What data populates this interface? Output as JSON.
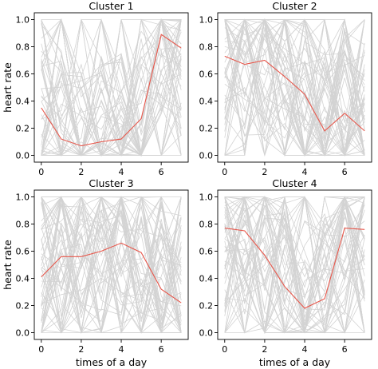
{
  "colors": {
    "mean_line": "#e8574b",
    "background_lines": "#d3d3d3"
  },
  "chart_data": [
    {
      "type": "line",
      "title": "Cluster 1",
      "xlabel": "",
      "ylabel": "heart rate",
      "xlim": [
        -0.35,
        7.35
      ],
      "ylim": [
        -0.05,
        1.05
      ],
      "xticks": [
        0,
        2,
        4,
        6
      ],
      "yticks": [
        0.0,
        0.2,
        0.4,
        0.6,
        0.8,
        1.0
      ],
      "ytick_labels": [
        "0.0",
        "0.2",
        "0.4",
        "0.6",
        "0.8",
        "1.0"
      ],
      "x": [
        0,
        1,
        2,
        3,
        4,
        5,
        6,
        7
      ],
      "mean": [
        0.35,
        0.12,
        0.07,
        0.1,
        0.12,
        0.27,
        0.89,
        0.79
      ],
      "background_series_count": 60,
      "background_pattern": "low-middle"
    },
    {
      "type": "line",
      "title": "Cluster 2",
      "xlabel": "",
      "ylabel": "",
      "xlim": [
        -0.35,
        7.35
      ],
      "ylim": [
        -0.05,
        1.05
      ],
      "xticks": [
        0,
        2,
        4,
        6
      ],
      "yticks": [
        0.0,
        0.2,
        0.4,
        0.6,
        0.8,
        1.0
      ],
      "ytick_labels": [
        "0.0",
        "0.2",
        "0.4",
        "0.6",
        "0.8",
        "1.0"
      ],
      "x": [
        0,
        1,
        2,
        3,
        4,
        5,
        6,
        7
      ],
      "mean": [
        0.73,
        0.67,
        0.7,
        0.58,
        0.45,
        0.18,
        0.31,
        0.18
      ],
      "background_series_count": 60,
      "background_pattern": "descending"
    },
    {
      "type": "line",
      "title": "Cluster 3",
      "xlabel": "times of a day",
      "ylabel": "heart rate",
      "xlim": [
        -0.35,
        7.35
      ],
      "ylim": [
        -0.05,
        1.05
      ],
      "xticks": [
        0,
        2,
        4,
        6
      ],
      "yticks": [
        0.0,
        0.2,
        0.4,
        0.6,
        0.8,
        1.0
      ],
      "ytick_labels": [
        "0.0",
        "0.2",
        "0.4",
        "0.6",
        "0.8",
        "1.0"
      ],
      "x": [
        0,
        1,
        2,
        3,
        4,
        5,
        6,
        7
      ],
      "mean": [
        0.41,
        0.56,
        0.56,
        0.6,
        0.66,
        0.59,
        0.32,
        0.22
      ],
      "background_series_count": 60,
      "background_pattern": "mixed"
    },
    {
      "type": "line",
      "title": "Cluster 4",
      "xlabel": "times of a day",
      "ylabel": "",
      "xlim": [
        -0.35,
        7.35
      ],
      "ylim": [
        -0.05,
        1.05
      ],
      "xticks": [
        0,
        2,
        4,
        6
      ],
      "yticks": [
        0.0,
        0.2,
        0.4,
        0.6,
        0.8,
        1.0
      ],
      "ytick_labels": [
        "0.0",
        "0.2",
        "0.4",
        "0.6",
        "0.8",
        "1.0"
      ],
      "x": [
        0,
        1,
        2,
        3,
        4,
        5,
        6,
        7
      ],
      "mean": [
        0.77,
        0.75,
        0.57,
        0.34,
        0.18,
        0.25,
        0.77,
        0.76
      ],
      "background_series_count": 60,
      "background_pattern": "dip-middle"
    }
  ]
}
